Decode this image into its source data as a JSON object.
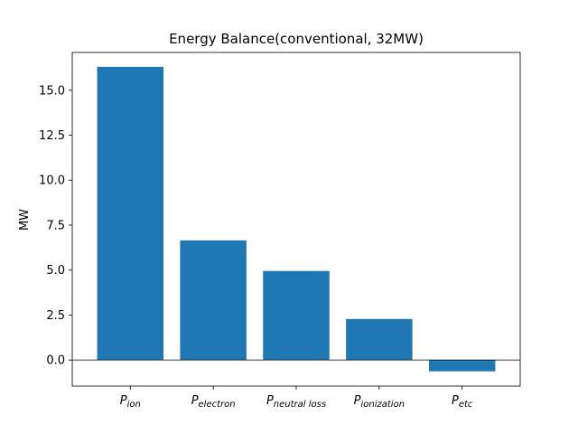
{
  "chart_data": {
    "type": "bar",
    "title": "Energy Balance(conventional, 32MW)",
    "xlabel": "",
    "ylabel": "MW",
    "categories": [
      {
        "main": "P",
        "sub": "ion"
      },
      {
        "main": "P",
        "sub": "electron"
      },
      {
        "main": "P",
        "sub": "neutral loss"
      },
      {
        "main": "P",
        "sub": "ionization"
      },
      {
        "main": "P",
        "sub": "etc"
      }
    ],
    "values": [
      16.3,
      6.65,
      4.95,
      2.28,
      -0.63
    ],
    "ylim": [
      -1.45,
      17.1
    ],
    "yticks": [
      0.0,
      2.5,
      5.0,
      7.5,
      10.0,
      12.5,
      15.0
    ],
    "ytick_labels": [
      "0.0",
      "2.5",
      "5.0",
      "7.5",
      "10.0",
      "12.5",
      "15.0"
    ],
    "zero_line": true,
    "grid": false,
    "bar_color": "#1f77b4"
  }
}
